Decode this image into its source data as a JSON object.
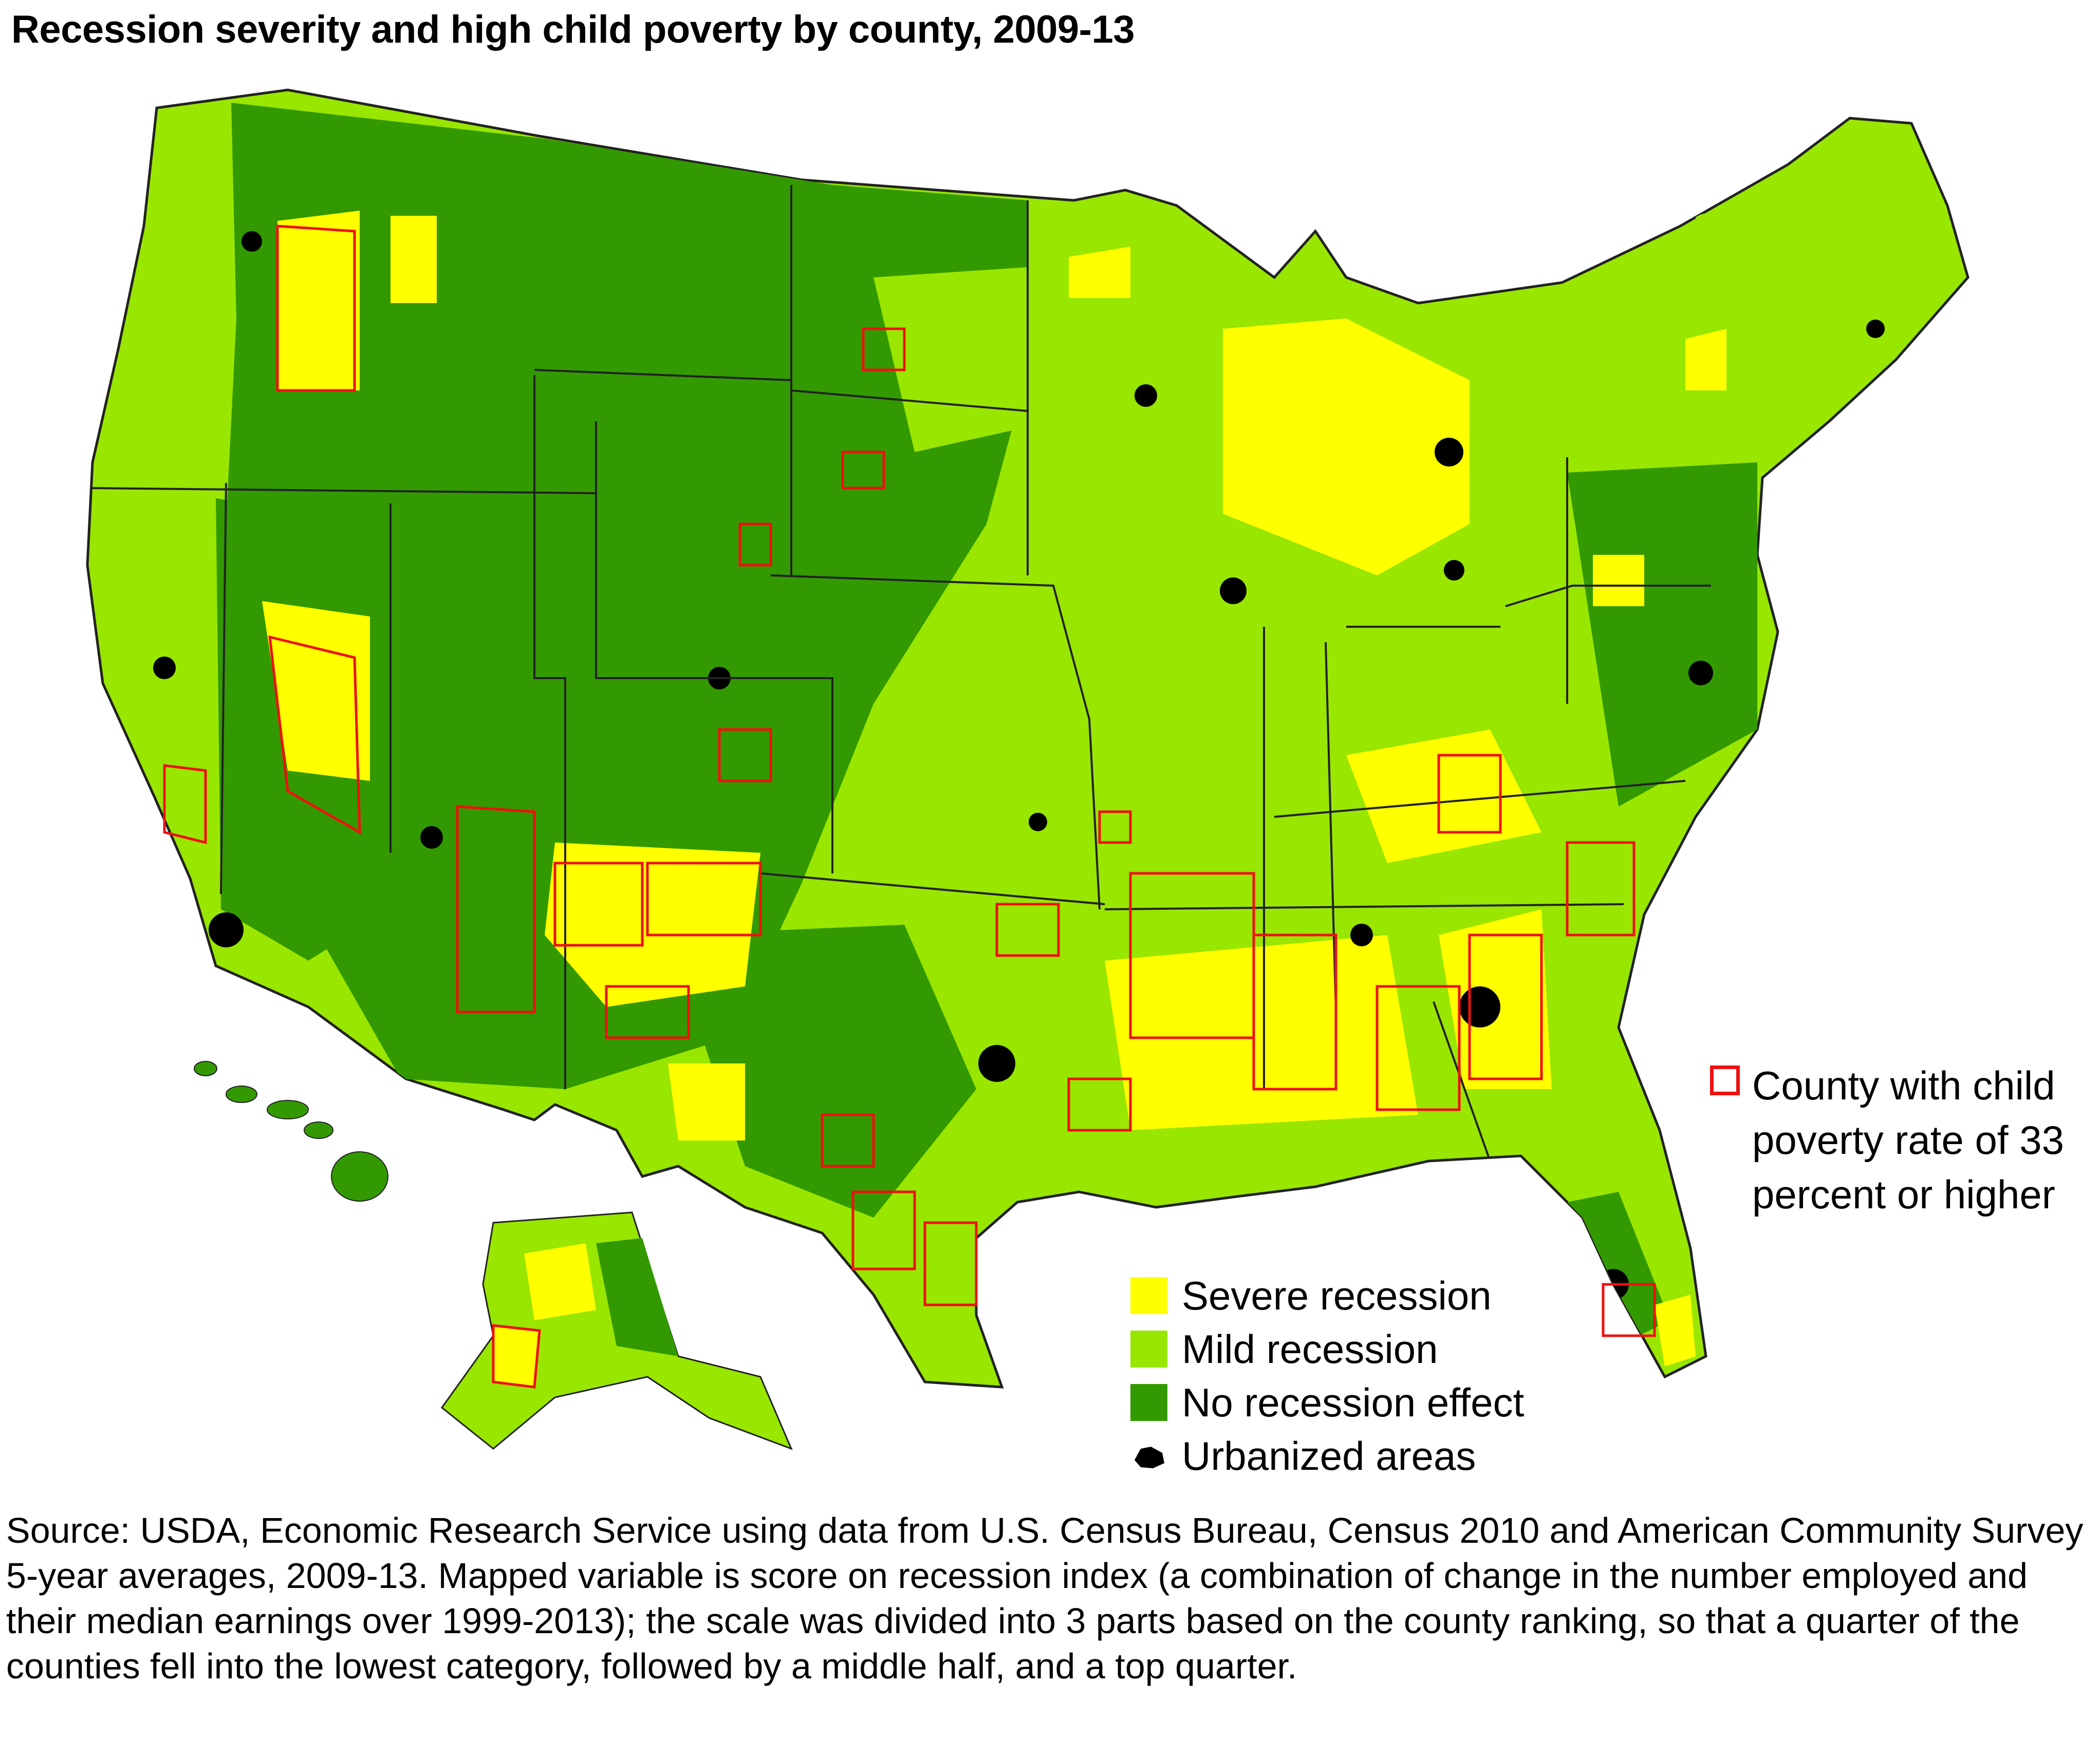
{
  "title": "Recession severity and high child poverty by county, 2009-13",
  "colors": {
    "severe": "#ffff00",
    "mild": "#99e600",
    "none": "#339900",
    "urban": "#000000",
    "poverty_outline": "#ee1111",
    "state_border": "#222222"
  },
  "legend": {
    "items": [
      {
        "label": "Severe recession",
        "color": "#ffff00"
      },
      {
        "label": "Mild recession",
        "color": "#99e600"
      },
      {
        "label": "No recession effect",
        "color": "#339900"
      },
      {
        "label": "Urbanized areas",
        "color": "#000000"
      }
    ],
    "poverty_label": "County with child poverty rate of 33 percent or higher"
  },
  "source": "Source: USDA, Economic Research Service using data from U.S. Census Bureau, Census 2010 and American Community Survey 5-year averages, 2009-13. Mapped variable is score on recession index (a combination of change in the number employed and their median earnings over 1999-2013); the scale was divided into 3 parts based on the county ranking, so that a quarter of the counties fell into the lowest category, followed by a middle half, and a top quarter."
}
